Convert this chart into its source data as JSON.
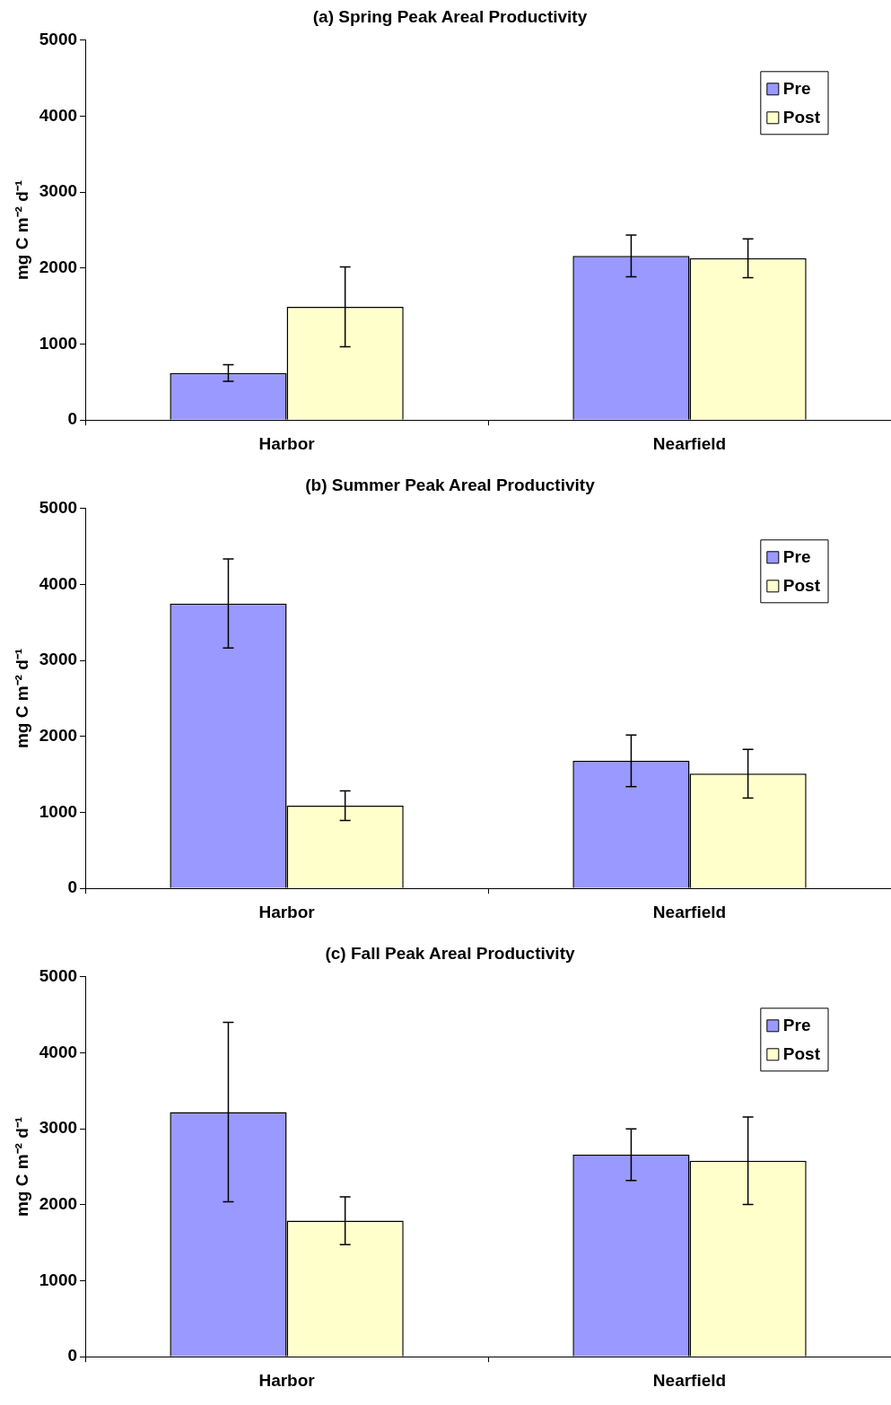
{
  "chart_data": [
    {
      "type": "bar",
      "title": "(a) Spring Peak Areal Productivity",
      "ylabel": "mg C m⁻² d⁻¹",
      "categories": [
        "Harbor",
        "Nearfield"
      ],
      "series": [
        {
          "name": "Pre",
          "color": "#9999ff",
          "values": [
            620,
            2160
          ],
          "errors": [
            110,
            275
          ]
        },
        {
          "name": "Post",
          "color": "#ffffcc",
          "values": [
            1490,
            2130
          ],
          "errors": [
            525,
            255
          ]
        }
      ],
      "ylim": [
        0,
        5000
      ],
      "yticks": [
        0,
        1000,
        2000,
        3000,
        4000,
        5000
      ],
      "grid": false,
      "legend": "top right"
    },
    {
      "type": "bar",
      "title": "(b) Summer Peak Areal Productivity",
      "ylabel": "mg C m⁻² d⁻¹",
      "categories": [
        "Harbor",
        "Nearfield"
      ],
      "series": [
        {
          "name": "Pre",
          "color": "#9999ff",
          "values": [
            3750,
            1680
          ],
          "errors": [
            585,
            340
          ]
        },
        {
          "name": "Post",
          "color": "#ffffcc",
          "values": [
            1090,
            1510
          ],
          "errors": [
            195,
            320
          ]
        }
      ],
      "ylim": [
        0,
        5000
      ],
      "yticks": [
        0,
        1000,
        2000,
        3000,
        4000,
        5000
      ],
      "grid": false,
      "legend": "top right"
    },
    {
      "type": "bar",
      "title": "(c) Fall Peak Areal Productivity",
      "ylabel": "mg C m⁻² d⁻¹",
      "categories": [
        "Harbor",
        "Nearfield"
      ],
      "series": [
        {
          "name": "Pre",
          "color": "#9999ff",
          "values": [
            3220,
            2660
          ],
          "errors": [
            1180,
            340
          ]
        },
        {
          "name": "Post",
          "color": "#ffffcc",
          "values": [
            1790,
            2580
          ],
          "errors": [
            315,
            575
          ]
        }
      ],
      "ylim": [
        0,
        5000
      ],
      "yticks": [
        0,
        1000,
        2000,
        3000,
        4000,
        5000
      ],
      "grid": false,
      "legend": "top right"
    }
  ]
}
